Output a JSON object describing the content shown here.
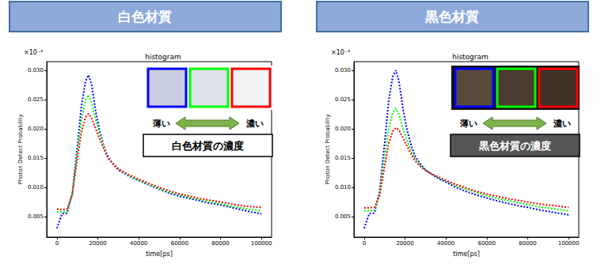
{
  "chart_data": [
    {
      "type": "line",
      "panel_title": "白色材質",
      "title": "histogram",
      "x_label": "time[ps]",
      "y_label": "Photon Detect Probability",
      "y_offset_label": "×10⁻³",
      "annotations": {
        "left": "薄い",
        "right": "濃い",
        "caption": "白色材質の濃度"
      },
      "x": [
        0,
        2500,
        5000,
        7500,
        10000,
        12000,
        14000,
        15500,
        17000,
        19000,
        21000,
        23000,
        25000,
        27500,
        30000,
        32500,
        35000,
        37500,
        40000,
        45000,
        50000,
        55000,
        60000,
        65000,
        70000,
        75000,
        80000,
        85000,
        90000,
        95000,
        100000
      ],
      "xlim": [
        -5000,
        105000
      ],
      "xticks": [
        0,
        20000,
        40000,
        60000,
        80000,
        100000
      ],
      "ylim": [
        0.0015,
        0.0315
      ],
      "yticks": [
        0.005,
        {
          "value": 0.01,
          "label": "0.010"
        },
        0.015,
        {
          "value": 0.02,
          "label": "0.020"
        },
        0.025,
        {
          "value": 0.03,
          "label": "0.030"
        }
      ],
      "grid": false,
      "line_style": "dotted",
      "series": [
        {
          "color": "#0000ff",
          "values": [
            0.003,
            0.0055,
            0.0056,
            0.009,
            0.017,
            0.024,
            0.0282,
            0.0292,
            0.0275,
            0.023,
            0.0195,
            0.017,
            0.0152,
            0.014,
            0.013,
            0.0125,
            0.012,
            0.0115,
            0.0112,
            0.0104,
            0.0097,
            0.009,
            0.0085,
            0.0081,
            0.0077,
            0.0073,
            0.007,
            0.0066,
            0.0062,
            0.0058,
            0.0055
          ]
        },
        {
          "color": "#00ff00",
          "values": [
            0.0058,
            0.0058,
            0.0059,
            0.0088,
            0.016,
            0.0215,
            0.025,
            0.0258,
            0.0245,
            0.0215,
            0.019,
            0.0168,
            0.015,
            0.014,
            0.0132,
            0.0126,
            0.0121,
            0.0116,
            0.0113,
            0.0105,
            0.0098,
            0.0092,
            0.0087,
            0.0083,
            0.0079,
            0.0075,
            0.0072,
            0.0068,
            0.0065,
            0.0062,
            0.006
          ]
        },
        {
          "color": "#ff0000",
          "values": [
            0.0063,
            0.0062,
            0.0063,
            0.0088,
            0.015,
            0.0195,
            0.022,
            0.0226,
            0.0218,
            0.02,
            0.0182,
            0.0165,
            0.015,
            0.014,
            0.0132,
            0.0127,
            0.0122,
            0.0118,
            0.0114,
            0.0107,
            0.01,
            0.0094,
            0.0089,
            0.0085,
            0.0081,
            0.0078,
            0.0075,
            0.0072,
            0.0069,
            0.0067,
            0.0066
          ]
        }
      ]
    },
    {
      "type": "line",
      "panel_title": "黒色材質",
      "title": "histogram",
      "x_label": "time[ps]",
      "y_label": "Photon Detect Probability",
      "y_offset_label": "×10⁻³",
      "annotations": {
        "left": "薄い",
        "right": "濃い",
        "caption": "黒色材質の濃度"
      },
      "x": [
        0,
        2500,
        5000,
        7500,
        10000,
        12000,
        14000,
        15500,
        17000,
        19000,
        21000,
        23000,
        25000,
        27500,
        30000,
        32500,
        35000,
        37500,
        40000,
        45000,
        50000,
        55000,
        60000,
        65000,
        70000,
        75000,
        80000,
        85000,
        90000,
        95000,
        100000
      ],
      "xlim": [
        -5000,
        105000
      ],
      "xticks": [
        0,
        20000,
        40000,
        60000,
        80000,
        100000
      ],
      "ylim": [
        0.0015,
        0.0315
      ],
      "yticks": [
        0.005,
        {
          "value": 0.01,
          "label": "0.010"
        },
        0.015,
        {
          "value": 0.02,
          "label": "0.020"
        },
        0.025,
        {
          "value": 0.03,
          "label": "0.030"
        }
      ],
      "grid": false,
      "line_style": "dotted",
      "series": [
        {
          "color": "#0000ff",
          "values": [
            0.003,
            0.0055,
            0.0056,
            0.0092,
            0.0175,
            0.0248,
            0.029,
            0.03,
            0.0282,
            0.0235,
            0.0198,
            0.0172,
            0.0153,
            0.014,
            0.013,
            0.0124,
            0.0118,
            0.0113,
            0.0109,
            0.01,
            0.0093,
            0.0087,
            0.0082,
            0.0077,
            0.0073,
            0.0069,
            0.0066,
            0.0062,
            0.0059,
            0.0056,
            0.0053
          ]
        },
        {
          "color": "#00ff00",
          "values": [
            0.006,
            0.006,
            0.0061,
            0.0088,
            0.015,
            0.02,
            0.0228,
            0.0235,
            0.0225,
            0.02,
            0.018,
            0.0162,
            0.0148,
            0.0138,
            0.013,
            0.0124,
            0.0119,
            0.0115,
            0.0111,
            0.0103,
            0.0097,
            0.0091,
            0.0086,
            0.0081,
            0.0078,
            0.0074,
            0.0071,
            0.0067,
            0.0065,
            0.0062,
            0.006
          ]
        },
        {
          "color": "#ff0000",
          "values": [
            0.0065,
            0.0065,
            0.0066,
            0.0085,
            0.0135,
            0.0175,
            0.0196,
            0.0202,
            0.0198,
            0.0185,
            0.017,
            0.0157,
            0.0145,
            0.0136,
            0.0129,
            0.0124,
            0.012,
            0.0116,
            0.0112,
            0.0105,
            0.0099,
            0.0093,
            0.0089,
            0.0085,
            0.0081,
            0.0078,
            0.0075,
            0.0072,
            0.007,
            0.0068,
            0.0066
          ]
        }
      ]
    }
  ]
}
